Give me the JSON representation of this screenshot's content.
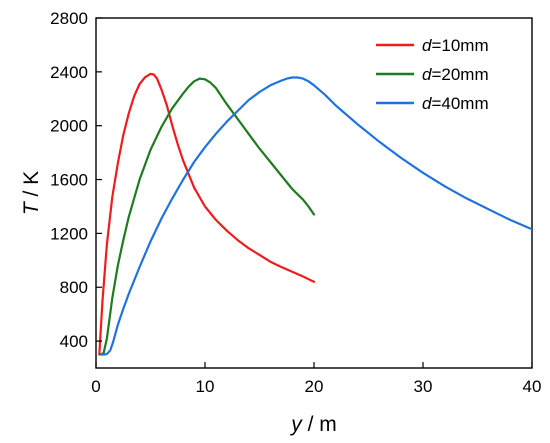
{
  "chart_data": {
    "type": "line",
    "xlabel": {
      "var": "y",
      "unit": " / m"
    },
    "ylabel": {
      "var": "T",
      "unit": " / K"
    },
    "xlim": [
      0,
      40
    ],
    "ylim": [
      200,
      2800
    ],
    "xticks": [
      0,
      10,
      20,
      30,
      40
    ],
    "xtick_labels": [
      "0",
      "10",
      "20",
      "30",
      "40"
    ],
    "yticks": [
      400,
      800,
      1200,
      1600,
      2000,
      2400,
      2800
    ],
    "ytick_labels": [
      "400",
      "800",
      "1200",
      "1600",
      "2000",
      "2400",
      "2800"
    ],
    "grid": false,
    "legend_position": "top-right",
    "series": [
      {
        "name": "d=10mm",
        "legend_var": "d",
        "legend_rest": "=10mm",
        "color": "#ee1c1c",
        "x": [
          0.3,
          0.6,
          1.0,
          1.5,
          2.0,
          2.5,
          3.0,
          3.5,
          4.0,
          4.5,
          5.0,
          5.3,
          5.6,
          6.0,
          6.5,
          7.0,
          7.5,
          8.0,
          9.0,
          10.0,
          11.0,
          12.0,
          13.0,
          14.0,
          15.0,
          16.0,
          17.0,
          18.0,
          19.0,
          19.5,
          20.0
        ],
        "y": [
          300,
          700,
          1120,
          1470,
          1720,
          1930,
          2090,
          2220,
          2310,
          2360,
          2385,
          2380,
          2350,
          2270,
          2150,
          2000,
          1860,
          1740,
          1540,
          1400,
          1300,
          1220,
          1150,
          1090,
          1040,
          990,
          950,
          915,
          880,
          860,
          840
        ]
      },
      {
        "name": "d=20mm",
        "legend_var": "d",
        "legend_rest": "=20mm",
        "color": "#1f7b1f",
        "x": [
          0.4,
          0.7,
          1.0,
          1.5,
          2.0,
          2.5,
          3.0,
          4.0,
          5.0,
          6.0,
          7.0,
          8.0,
          8.5,
          9.0,
          9.5,
          10.0,
          10.5,
          11.0,
          12.0,
          13.0,
          14.0,
          15.0,
          16.0,
          17.0,
          18.0,
          18.5,
          19.0,
          19.5,
          20.0
        ],
        "y": [
          300,
          310,
          420,
          720,
          960,
          1150,
          1320,
          1600,
          1820,
          1990,
          2130,
          2240,
          2290,
          2330,
          2350,
          2345,
          2320,
          2280,
          2160,
          2050,
          1940,
          1830,
          1730,
          1630,
          1530,
          1490,
          1450,
          1400,
          1340
        ]
      },
      {
        "name": "d=40mm",
        "legend_var": "d",
        "legend_rest": "=40mm",
        "color": "#1f72e0",
        "x": [
          0.5,
          0.8,
          1.0,
          1.3,
          1.6,
          2.0,
          2.5,
          3.0,
          4.0,
          5.0,
          6.0,
          7.0,
          8.0,
          9.0,
          10.0,
          11.0,
          12.0,
          13.0,
          14.0,
          15.0,
          16.0,
          17.0,
          17.5,
          18.0,
          18.5,
          19.0,
          19.5,
          20.0,
          21.0,
          22.0,
          24.0,
          26.0,
          28.0,
          30.0,
          32.0,
          34.0,
          36.0,
          38.0,
          40.0
        ],
        "y": [
          300,
          300,
          305,
          330,
          400,
          520,
          640,
          750,
          950,
          1140,
          1310,
          1460,
          1600,
          1730,
          1840,
          1940,
          2030,
          2110,
          2190,
          2250,
          2300,
          2335,
          2350,
          2358,
          2358,
          2350,
          2330,
          2300,
          2230,
          2150,
          2010,
          1880,
          1760,
          1650,
          1550,
          1460,
          1380,
          1300,
          1230
        ]
      }
    ]
  }
}
